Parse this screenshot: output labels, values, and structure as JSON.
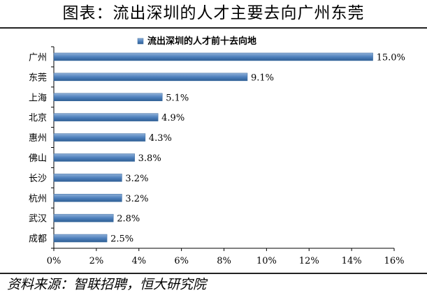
{
  "header": {
    "title": "图表：流出深圳的人才主要去向广州东莞"
  },
  "footer": {
    "source": "资料来源：智联招聘，恒大研究院"
  },
  "chart_data": {
    "type": "bar",
    "orientation": "horizontal",
    "categories": [
      "广州",
      "东莞",
      "上海",
      "北京",
      "惠州",
      "佛山",
      "长沙",
      "杭州",
      "武汉",
      "成都"
    ],
    "series": [
      {
        "name": "流出深圳的人才前十去向地",
        "values": [
          15.0,
          9.1,
          5.1,
          4.9,
          4.3,
          3.8,
          3.2,
          3.2,
          2.8,
          2.5
        ]
      }
    ],
    "data_labels": [
      "15.0%",
      "9.1%",
      "5.1%",
      "4.9%",
      "4.3%",
      "3.8%",
      "3.2%",
      "3.2%",
      "2.8%",
      "2.5%"
    ],
    "x_ticks": [
      "0%",
      "2%",
      "4%",
      "6%",
      "8%",
      "10%",
      "12%",
      "14%",
      "16%"
    ],
    "xlim": [
      0,
      16
    ],
    "legend_position": "top",
    "bar_color": "#4f81bd",
    "grid": false
  }
}
